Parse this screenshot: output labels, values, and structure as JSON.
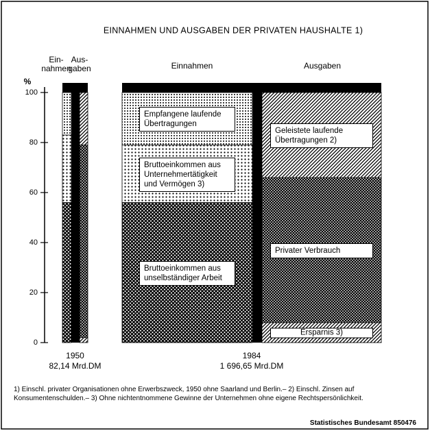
{
  "chart_data": {
    "type": "stacked_bar",
    "title": "EINNAHMEN UND AUSGABEN DER PRIVATEN HAUSHALTE 1)",
    "y_label": "%",
    "ylim": [
      0,
      100
    ],
    "yticks": [
      0,
      20,
      40,
      60,
      80,
      100
    ],
    "groups": [
      {
        "label": "1950",
        "sublabel": "82,14 Mrd.DM",
        "headers": [
          [
            "Ein-",
            "nahmen"
          ],
          [
            "Aus-",
            "gaben"
          ]
        ]
      },
      {
        "label": "1984",
        "sublabel": "1 696,65 Mrd.DM",
        "headers": [
          [
            "Einnahmen"
          ],
          [
            "Ausgaben"
          ]
        ]
      }
    ],
    "stacks": [
      {
        "series": [
          {
            "name": "Bruttoeinkommen aus unselbständiger Arbeit",
            "pattern": "crosshatch",
            "values": [
              56,
              56
            ]
          },
          {
            "name": "Bruttoeinkommen aus Unternehmertätigkeit und Vermögen 3)",
            "pattern": "dots",
            "values": [
              27,
              23
            ]
          },
          {
            "name": "Empfangene laufende Übertragungen",
            "pattern": "dots-dense",
            "values": [
              17,
              21
            ]
          }
        ]
      },
      {
        "series": [
          {
            "name": "Ersparnis 3)",
            "pattern": "diagonal",
            "values": [
              2,
              8
            ]
          },
          {
            "name": "Privater Verbrauch",
            "pattern": "crosshatch-fine",
            "values": [
              77,
              58
            ]
          },
          {
            "name": "Geleistete laufende Übertragungen 2)",
            "pattern": "diagonal",
            "values": [
              21,
              34
            ]
          }
        ]
      }
    ],
    "color": "#000000",
    "footnote": "1) Einschl. privater Organisationen ohne Erwerbszweck, 1950 ohne Saarland und Berlin.– 2) Einschl. Zinsen auf Konsumentenschulden.– 3) Ohne nichtentnommene Gewinne der Unternehmen ohne eigene Rechtspersönlichkeit.",
    "source": "Statistisches Bundesamt 850476"
  }
}
